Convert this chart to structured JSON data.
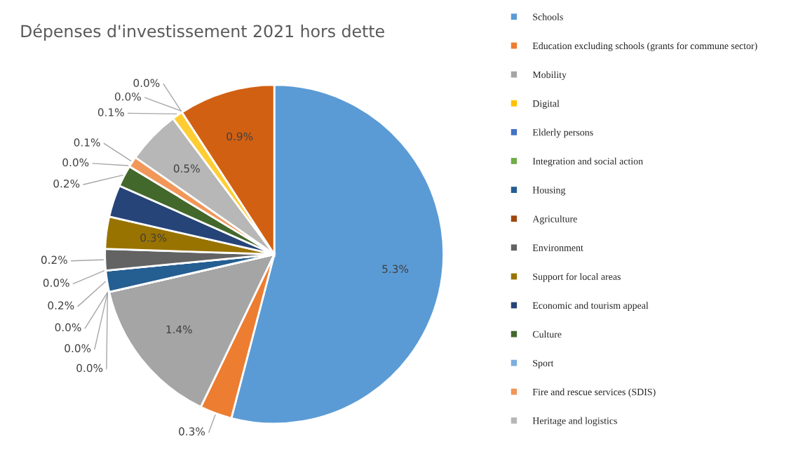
{
  "chart_data": {
    "type": "pie",
    "title": "Dépenses d'investissement 2021 hors dette",
    "categories": [
      "Schools",
      "Education excluding schools (grants for commune sector)",
      "Mobility",
      "Digital",
      "Elderly persons",
      "Integration and social action",
      "Housing",
      "Agriculture",
      "Environment",
      "Support for local areas",
      "Economic and tourism appeal",
      "Culture",
      "Sport",
      "Fire and rescue services (SDIS)",
      "Heritage and logistics",
      null,
      null,
      null,
      null
    ],
    "values": [
      5.3,
      0.3,
      1.4,
      0.0,
      0.0,
      0.0,
      0.2,
      0.0,
      0.2,
      0.3,
      0.3,
      0.2,
      0.0,
      0.1,
      0.5,
      0.1,
      0.0,
      0.0,
      0.9
    ],
    "value_labels": [
      "5.3%",
      "0.3%",
      "1.4%",
      "0.0%",
      "0.0%",
      "0.0%",
      "0.2%",
      "0.0%",
      "0.2%",
      "0.3%",
      null,
      "0.2%",
      "0.0%",
      "0.1%",
      "0.5%",
      "0.1%",
      "0.0%",
      "0.0%",
      "0.9%"
    ],
    "colors": [
      "#5b9bd5",
      "#ed7d31",
      "#a5a5a5",
      "#ffc000",
      "#4472c4",
      "#70ad47",
      "#255e91",
      "#9e480e",
      "#636363",
      "#997300",
      "#264478",
      "#43682b",
      "#7cafdd",
      "#f1975a",
      "#b7b7b7",
      "#ffcd33",
      "#698ed0",
      "#8cc168",
      "#d26012"
    ],
    "legend": "right"
  }
}
